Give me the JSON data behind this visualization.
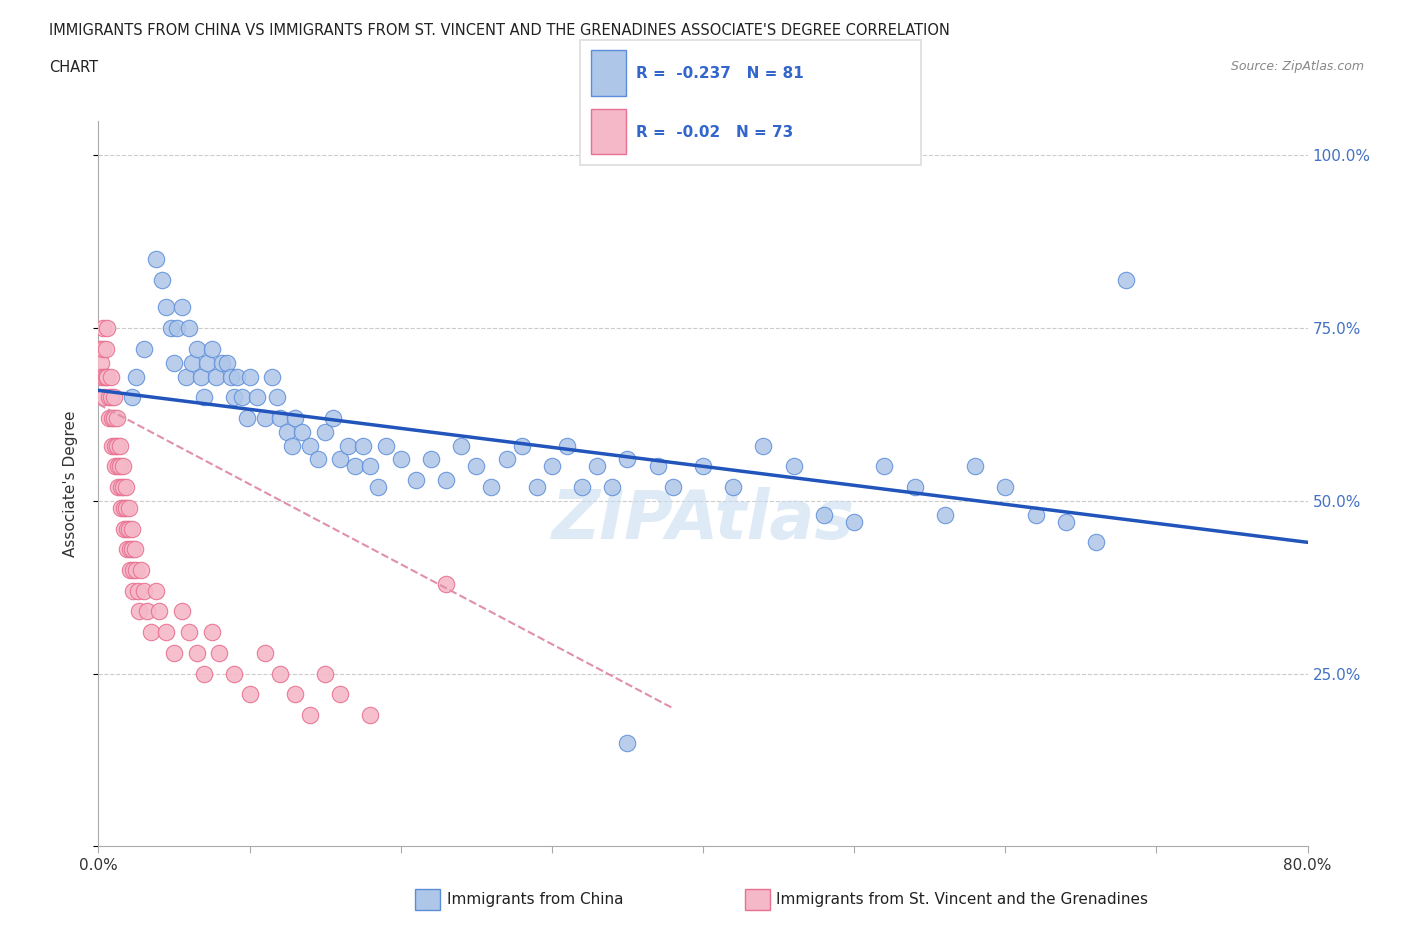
{
  "title_line1": "IMMIGRANTS FROM CHINA VS IMMIGRANTS FROM ST. VINCENT AND THE GRENADINES ASSOCIATE'S DEGREE CORRELATION",
  "title_line2": "CHART",
  "source": "Source: ZipAtlas.com",
  "ylabel": "Associate's Degree",
  "x_min": 0.0,
  "x_max": 0.8,
  "y_min": 0.0,
  "y_max": 1.05,
  "china_R": -0.237,
  "china_N": 81,
  "svg_R": -0.02,
  "svg_N": 73,
  "china_color": "#aec6e8",
  "china_edge_color": "#5b8dd9",
  "china_line_color": "#2255bb",
  "svg_color": "#f5b8c8",
  "svg_edge_color": "#e87090",
  "svg_line_color": "#e090a8",
  "grid_color": "#cccccc",
  "watermark_color": "#c8ddf0",
  "legend_box_color": "#dddddd",
  "right_tick_color": "#4472c4",
  "china_x": [
    0.022,
    0.025,
    0.03,
    0.038,
    0.042,
    0.045,
    0.048,
    0.05,
    0.052,
    0.055,
    0.058,
    0.06,
    0.062,
    0.065,
    0.068,
    0.07,
    0.072,
    0.075,
    0.078,
    0.082,
    0.085,
    0.088,
    0.09,
    0.092,
    0.095,
    0.098,
    0.1,
    0.105,
    0.11,
    0.115,
    0.118,
    0.12,
    0.125,
    0.128,
    0.13,
    0.135,
    0.14,
    0.145,
    0.15,
    0.155,
    0.16,
    0.165,
    0.17,
    0.175,
    0.18,
    0.185,
    0.19,
    0.2,
    0.21,
    0.22,
    0.23,
    0.24,
    0.25,
    0.26,
    0.27,
    0.28,
    0.29,
    0.3,
    0.31,
    0.32,
    0.33,
    0.34,
    0.35,
    0.37,
    0.38,
    0.4,
    0.42,
    0.44,
    0.46,
    0.48,
    0.5,
    0.52,
    0.54,
    0.56,
    0.58,
    0.6,
    0.62,
    0.64,
    0.66,
    0.68,
    0.35
  ],
  "china_y": [
    0.65,
    0.68,
    0.72,
    0.85,
    0.82,
    0.78,
    0.75,
    0.7,
    0.75,
    0.78,
    0.68,
    0.75,
    0.7,
    0.72,
    0.68,
    0.65,
    0.7,
    0.72,
    0.68,
    0.7,
    0.7,
    0.68,
    0.65,
    0.68,
    0.65,
    0.62,
    0.68,
    0.65,
    0.62,
    0.68,
    0.65,
    0.62,
    0.6,
    0.58,
    0.62,
    0.6,
    0.58,
    0.56,
    0.6,
    0.62,
    0.56,
    0.58,
    0.55,
    0.58,
    0.55,
    0.52,
    0.58,
    0.56,
    0.53,
    0.56,
    0.53,
    0.58,
    0.55,
    0.52,
    0.56,
    0.58,
    0.52,
    0.55,
    0.58,
    0.52,
    0.55,
    0.52,
    0.56,
    0.55,
    0.52,
    0.55,
    0.52,
    0.58,
    0.55,
    0.48,
    0.47,
    0.55,
    0.52,
    0.48,
    0.55,
    0.52,
    0.48,
    0.47,
    0.44,
    0.82,
    0.15
  ],
  "svg_x": [
    0.001,
    0.002,
    0.002,
    0.003,
    0.003,
    0.004,
    0.004,
    0.005,
    0.005,
    0.006,
    0.006,
    0.007,
    0.007,
    0.008,
    0.008,
    0.009,
    0.009,
    0.01,
    0.01,
    0.011,
    0.011,
    0.012,
    0.012,
    0.013,
    0.013,
    0.014,
    0.014,
    0.015,
    0.015,
    0.016,
    0.016,
    0.017,
    0.017,
    0.018,
    0.018,
    0.019,
    0.019,
    0.02,
    0.02,
    0.021,
    0.021,
    0.022,
    0.022,
    0.023,
    0.023,
    0.024,
    0.025,
    0.026,
    0.027,
    0.028,
    0.03,
    0.032,
    0.035,
    0.038,
    0.04,
    0.045,
    0.05,
    0.055,
    0.06,
    0.065,
    0.07,
    0.075,
    0.08,
    0.09,
    0.1,
    0.11,
    0.12,
    0.13,
    0.14,
    0.15,
    0.16,
    0.18,
    0.23
  ],
  "svg_y": [
    0.72,
    0.7,
    0.68,
    0.75,
    0.72,
    0.68,
    0.65,
    0.72,
    0.68,
    0.75,
    0.68,
    0.65,
    0.62,
    0.68,
    0.65,
    0.62,
    0.58,
    0.65,
    0.62,
    0.58,
    0.55,
    0.62,
    0.58,
    0.55,
    0.52,
    0.58,
    0.55,
    0.52,
    0.49,
    0.55,
    0.52,
    0.49,
    0.46,
    0.52,
    0.49,
    0.46,
    0.43,
    0.49,
    0.46,
    0.43,
    0.4,
    0.46,
    0.43,
    0.4,
    0.37,
    0.43,
    0.4,
    0.37,
    0.34,
    0.4,
    0.37,
    0.34,
    0.31,
    0.37,
    0.34,
    0.31,
    0.28,
    0.34,
    0.31,
    0.28,
    0.25,
    0.31,
    0.28,
    0.25,
    0.22,
    0.28,
    0.25,
    0.22,
    0.19,
    0.25,
    0.22,
    0.19,
    0.38
  ],
  "china_trendline_x": [
    0.0,
    0.8
  ],
  "china_trendline_y": [
    0.66,
    0.44
  ],
  "svg_trendline_x": [
    0.0,
    0.38
  ],
  "svg_trendline_y": [
    0.64,
    0.2
  ]
}
